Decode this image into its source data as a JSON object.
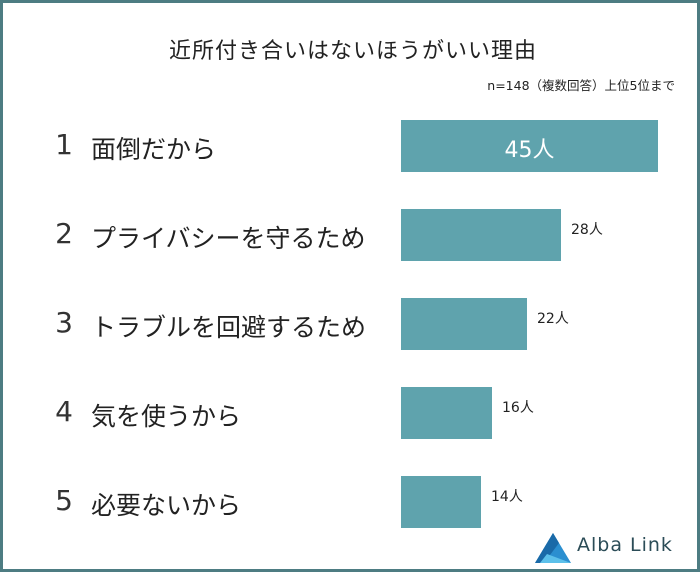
{
  "title": "近所付き合いはないほうがいい理由",
  "note": "n=148（複数回答）上位5位まで",
  "brand": {
    "name": "Alba Link",
    "logo_icon": "alba-link-triangle-logo"
  },
  "colors": {
    "bar": "#5fa3ad",
    "frame": "#4d7c82"
  },
  "chart_data": {
    "type": "bar",
    "orientation": "horizontal",
    "title": "近所付き合いはないほうがいい理由",
    "ranks": [
      "1",
      "2",
      "3",
      "4",
      "5"
    ],
    "categories": [
      "面倒だから",
      "プライバシーを守るため",
      "トラブルを回避するため",
      "気を使うから",
      "必要ないから"
    ],
    "values": [
      45,
      28,
      22,
      16,
      14
    ],
    "value_labels": [
      "45人",
      "28人",
      "22人",
      "16人",
      "14人"
    ],
    "unit": "人",
    "xlim": [
      0,
      45
    ],
    "grid": false,
    "legend": "none"
  }
}
